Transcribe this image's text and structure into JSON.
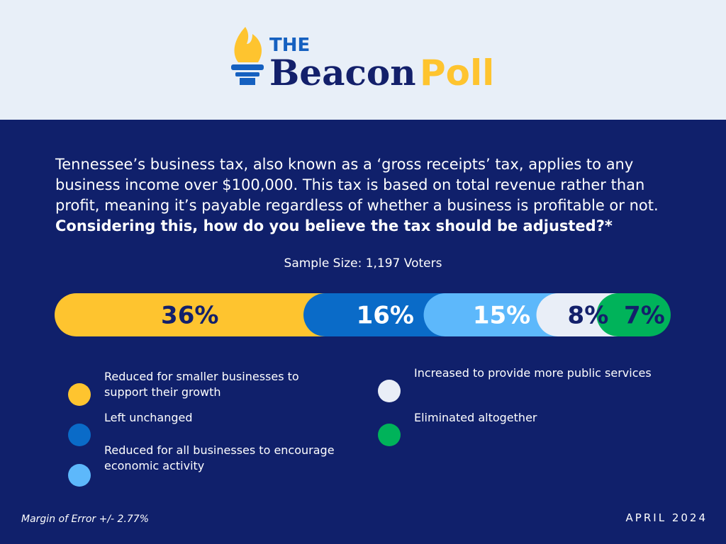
{
  "header": {
    "the": "THE",
    "beacon": "Beacon",
    "poll": "Poll"
  },
  "chart_data": {
    "type": "stacked_bar",
    "question": "Tennessee’s business tax, also known as a ‘gross receipts’ tax, applies to any business income over $100,000. This tax is based on total revenue rather than profit, meaning it’s payable regardless of whether a business is profitable or not.",
    "question_bold": "Considering this, how do you believe the tax should be adjusted?*",
    "subtitle": "Sample Size: 1,197 Voters",
    "categories": [
      "Reduced for smaller businesses to support their growth",
      "Left unchanged",
      "Reduced for all businesses to encourage economic activity",
      "Increased to provide more public services",
      "Eliminated altogether"
    ],
    "values": [
      36,
      16,
      15,
      8,
      7
    ],
    "value_labels": [
      "36%",
      "16%",
      "15%",
      "8%",
      "7%"
    ],
    "colors": [
      "#fec42f",
      "#0a6bc8",
      "#5db8fb",
      "#e9eef7",
      "#00b35a"
    ],
    "label_colors": [
      "#13206b",
      "#ffffff",
      "#ffffff",
      "#13206b",
      "#13206b"
    ]
  },
  "footer": {
    "margin": "Margin of Error +/- 2.77%",
    "date": "APRIL 2024"
  }
}
